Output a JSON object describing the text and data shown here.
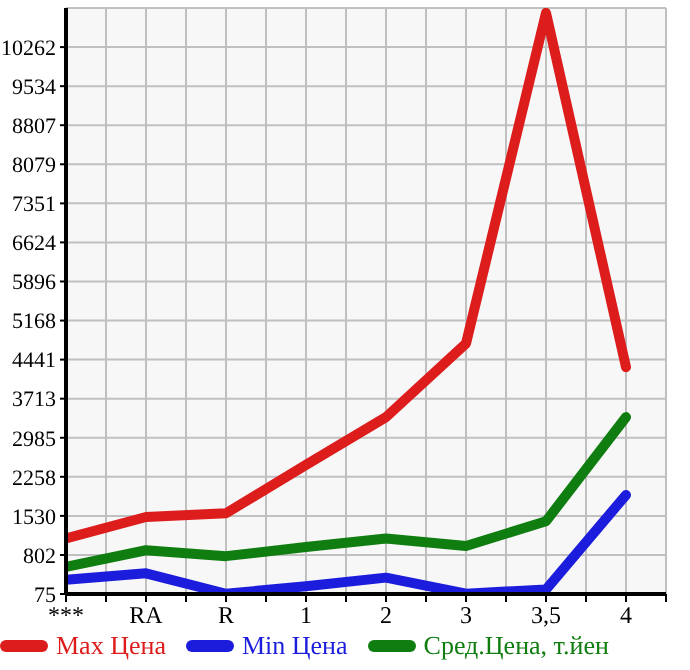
{
  "chart_data": {
    "type": "line",
    "categories": [
      "***",
      "RA",
      "R",
      "1",
      "2",
      "3",
      "3,5",
      "4"
    ],
    "series": [
      {
        "name": "Max Цена",
        "color": "#dd1c1c",
        "values": [
          1110,
          1510,
          1580,
          2480,
          3370,
          4740,
          10900,
          4300
        ]
      },
      {
        "name": "Min Цена",
        "color": "#1c1cdd",
        "values": [
          340,
          460,
          80,
          220,
          380,
          80,
          160,
          1920
        ]
      },
      {
        "name": "Сред.Цена, т.йен",
        "color": "#0f7d0f",
        "values": [
          580,
          890,
          780,
          950,
          1110,
          970,
          1430,
          3370
        ]
      }
    ],
    "ylim": [
      75,
      10990
    ],
    "yticks": [
      75,
      802,
      1530,
      2258,
      2985,
      3713,
      4441,
      5168,
      5896,
      6624,
      7351,
      8079,
      8807,
      9534,
      10262
    ],
    "grid": true,
    "legend": "bottom",
    "marker": "none",
    "line_style": "solid"
  }
}
